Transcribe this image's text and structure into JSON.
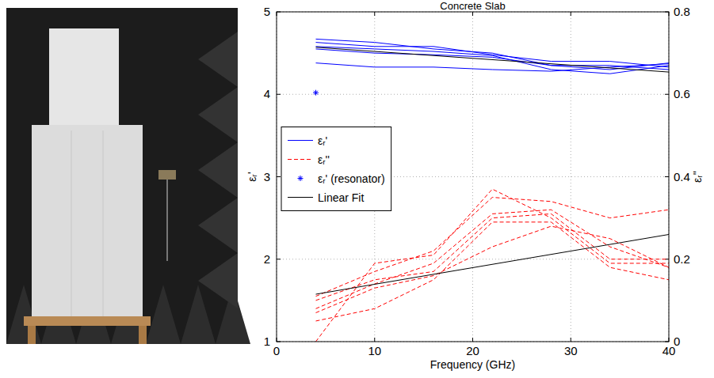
{
  "chart_data": {
    "type": "line",
    "title": "Concrete Slab",
    "x_label": "Frequency (GHz)",
    "y_label": "εᵣ'",
    "y2_label": "εᵣ''",
    "x": [
      4,
      10,
      16,
      22,
      28,
      34,
      40
    ],
    "xlim": [
      0,
      40
    ],
    "xticks": [
      0,
      10,
      20,
      30,
      40
    ],
    "ylim": [
      1,
      5
    ],
    "yticks": [
      1,
      2,
      3,
      4,
      5
    ],
    "y2lim": [
      0,
      0.8
    ],
    "y2ticks": [
      0,
      0.2,
      0.4,
      0.6,
      0.8
    ],
    "grid": true,
    "legend": "west",
    "series": [
      {
        "name": "εᵣ'",
        "color": "#0000ff",
        "line_style": "solid",
        "values": [
          4.67,
          4.63,
          4.55,
          4.5,
          4.35,
          4.3,
          4.38
        ]
      },
      {
        "name": "εᵣ'",
        "color": "#0000ff",
        "line_style": "solid",
        "values": [
          4.63,
          4.58,
          4.58,
          4.48,
          4.4,
          4.4,
          4.33
        ]
      },
      {
        "name": "εᵣ'",
        "color": "#0000ff",
        "line_style": "solid",
        "values": [
          4.58,
          4.55,
          4.52,
          4.47,
          4.3,
          4.25,
          4.35
        ]
      },
      {
        "name": "εᵣ'",
        "color": "#0000ff",
        "line_style": "solid",
        "values": [
          4.55,
          4.5,
          4.48,
          4.45,
          4.35,
          4.35,
          4.3
        ]
      },
      {
        "name": "εᵣ'",
        "color": "#0000ff",
        "line_style": "solid",
        "values": [
          4.38,
          4.33,
          4.33,
          4.3,
          4.28,
          4.33,
          4.37
        ]
      },
      {
        "name": "εᵣ''",
        "color": "#ff0000",
        "line_style": "dashed",
        "axis": "y2",
        "values": [
          0.11,
          0.17,
          0.22,
          0.35,
          0.34,
          0.3,
          0.32
        ]
      },
      {
        "name": "εᵣ''",
        "color": "#ff0000",
        "line_style": "dashed",
        "axis": "y2",
        "values": [
          0.1,
          0.15,
          0.17,
          0.3,
          0.31,
          0.2,
          0.2
        ]
      },
      {
        "name": "εᵣ''",
        "color": "#ff0000",
        "line_style": "dashed",
        "axis": "y2",
        "values": [
          0.08,
          0.14,
          0.19,
          0.31,
          0.32,
          0.23,
          0.18
        ]
      },
      {
        "name": "εᵣ''",
        "color": "#ff0000",
        "line_style": "dashed",
        "axis": "y2",
        "values": [
          0.07,
          0.13,
          0.16,
          0.23,
          0.28,
          0.25,
          0.18
        ]
      },
      {
        "name": "εᵣ''",
        "color": "#ff0000",
        "line_style": "dashed",
        "axis": "y2",
        "values": [
          0.05,
          0.08,
          0.15,
          0.29,
          0.29,
          0.18,
          0.15
        ]
      },
      {
        "name": "εᵣ''",
        "color": "#ff0000",
        "line_style": "dashed",
        "axis": "y2",
        "values": [
          0.0,
          0.19,
          0.21,
          0.37,
          0.3,
          0.19,
          0.19
        ]
      },
      {
        "name": "εᵣ' (resonator)",
        "type": "scatter",
        "marker": "star",
        "color": "#0000ff",
        "x": [
          4
        ],
        "values": [
          4.02
        ]
      },
      {
        "name": "Linear Fit",
        "color": "#000000",
        "line_style": "solid",
        "x": [
          4,
          40
        ],
        "values": [
          4.57,
          4.27
        ]
      },
      {
        "name": "Linear Fit",
        "color": "#000000",
        "line_style": "solid",
        "axis": "y2",
        "x": [
          4,
          40
        ],
        "values": [
          0.115,
          0.26
        ]
      }
    ]
  }
}
